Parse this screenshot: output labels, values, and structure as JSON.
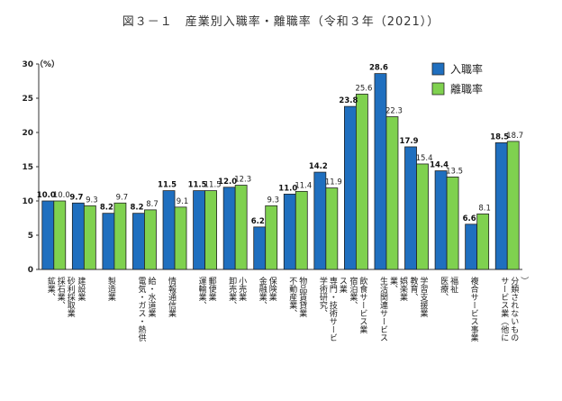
{
  "chart_data": {
    "type": "bar",
    "title": "図３－１　産業別入職率・離職率（令和３年（2021））",
    "ylabel": "（%）",
    "ylim": [
      0,
      30
    ],
    "yticks": [
      0,
      5,
      10,
      15,
      20,
      25,
      30
    ],
    "legend_position": "top-right",
    "categories": [
      "鉱業、採石業、砂利採取業",
      "建設業",
      "製造業",
      "電気・ガス・熱供給・水道業",
      "情報通信業",
      "運輸業、郵便業",
      "卸売業、小売業",
      "金融業、保険業",
      "不動産業、物品賃貸業",
      "学術研究、専門・技術サービス業",
      "宿泊業、飲食サービス業",
      "生活関連サービス業、娯楽業",
      "教育、学習支援業",
      "医療、福祉",
      "複合サービス事業",
      "サービス業（他に分類されないもの）"
    ],
    "series": [
      {
        "name": "入職率",
        "color": "#1f6fbf",
        "values": [
          10.0,
          9.7,
          8.2,
          8.2,
          11.5,
          11.5,
          12.0,
          6.2,
          11.0,
          14.2,
          23.8,
          28.6,
          17.9,
          14.4,
          6.6,
          18.5
        ],
        "labels": [
          "10.0",
          "9.7",
          "8.2",
          "8.2",
          "11.5",
          "11.5",
          "12.0",
          "6.2",
          "11.0",
          "14.2",
          "23.8",
          "28.6",
          "17.9",
          "14.4",
          "6.6",
          "18.5"
        ]
      },
      {
        "name": "離職率",
        "color": "#7fd14f",
        "values": [
          10.0,
          9.3,
          9.7,
          8.7,
          9.1,
          11.5,
          12.3,
          9.3,
          11.4,
          11.9,
          25.6,
          22.3,
          15.4,
          13.5,
          8.1,
          18.7
        ],
        "labels": [
          "10.0",
          "9.3",
          "9.7",
          "8.7",
          "9.1",
          "11.5",
          "12.3",
          "9.3",
          "11.4",
          "11.9",
          "25.6",
          "22.3",
          "15.4",
          "13.5",
          "8.1",
          "18.7"
        ]
      }
    ]
  }
}
